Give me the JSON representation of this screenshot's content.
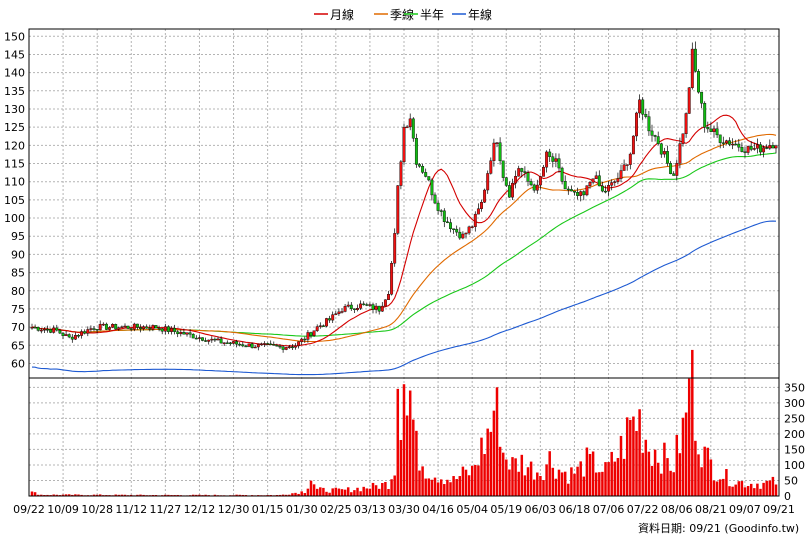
{
  "chart_data": {
    "type": "candlestick",
    "title": "",
    "legend": {
      "placement": "top-center",
      "items": [
        {
          "label": "月線",
          "color": "#d40000"
        },
        {
          "label": "季線",
          "color": "#e06a00"
        },
        {
          "label": "半年",
          "color": "#19c819"
        },
        {
          "label": "年線",
          "color": "#1e5ad2"
        }
      ]
    },
    "price_axis": {
      "ylim": [
        56,
        152
      ],
      "ticks": [
        60,
        65,
        70,
        75,
        80,
        85,
        90,
        95,
        100,
        105,
        110,
        115,
        120,
        125,
        130,
        135,
        140,
        145,
        150
      ]
    },
    "volume_axis": {
      "ylim": [
        0,
        380
      ],
      "ticks": [
        0,
        50,
        100,
        150,
        200,
        250,
        300,
        350
      ]
    },
    "x_ticks": [
      "09/22",
      "10/09",
      "10/28",
      "11/12",
      "11/27",
      "12/12",
      "12/30",
      "01/15",
      "01/30",
      "02/25",
      "03/13",
      "03/30",
      "04/16",
      "05/04",
      "05/19",
      "06/03",
      "06/18",
      "07/06",
      "07/22",
      "08/06",
      "08/21",
      "09/07",
      "09/21"
    ],
    "footer": "資料日期: 09/21 (Goodinfo.tw)",
    "colors": {
      "up": "#ee1111",
      "down": "#11bb11",
      "volume": "#ee0000",
      "grid": "#b4b4b4"
    },
    "close_keypoints": [
      [
        0,
        70
      ],
      [
        8,
        69
      ],
      [
        12,
        67
      ],
      [
        20,
        70
      ],
      [
        30,
        70
      ],
      [
        40,
        70
      ],
      [
        50,
        68
      ],
      [
        60,
        66
      ],
      [
        70,
        65
      ],
      [
        80,
        64.5
      ],
      [
        85,
        65
      ],
      [
        88,
        67
      ],
      [
        92,
        70
      ],
      [
        96,
        72
      ],
      [
        100,
        75
      ],
      [
        106,
        76
      ],
      [
        112,
        75
      ],
      [
        115,
        80
      ],
      [
        117,
        95
      ],
      [
        118,
        108
      ],
      [
        120,
        125
      ],
      [
        122,
        128
      ],
      [
        124,
        116
      ],
      [
        127,
        112
      ],
      [
        130,
        105
      ],
      [
        133,
        100
      ],
      [
        136,
        97
      ],
      [
        139,
        95
      ],
      [
        142,
        98
      ],
      [
        145,
        104
      ],
      [
        148,
        117
      ],
      [
        150,
        122
      ],
      [
        152,
        112
      ],
      [
        154,
        107
      ],
      [
        157,
        114
      ],
      [
        160,
        110
      ],
      [
        163,
        108
      ],
      [
        166,
        117
      ],
      [
        169,
        115
      ],
      [
        172,
        108
      ],
      [
        175,
        106
      ],
      [
        178,
        106
      ],
      [
        181,
        112
      ],
      [
        184,
        107
      ],
      [
        187,
        109
      ],
      [
        190,
        112
      ],
      [
        193,
        118
      ],
      [
        196,
        132
      ],
      [
        199,
        125
      ],
      [
        202,
        121
      ],
      [
        205,
        115
      ],
      [
        207,
        112
      ],
      [
        209,
        120
      ],
      [
        211,
        128
      ],
      [
        213,
        145
      ],
      [
        215,
        135
      ],
      [
        217,
        126
      ],
      [
        219,
        124
      ],
      [
        222,
        122
      ],
      [
        225,
        121
      ],
      [
        228,
        120
      ],
      [
        231,
        119
      ],
      [
        234,
        119
      ],
      [
        237,
        120
      ],
      [
        240,
        121
      ]
    ],
    "volume_keypoints": [
      [
        0,
        12
      ],
      [
        3,
        4
      ],
      [
        10,
        4
      ],
      [
        40,
        3
      ],
      [
        80,
        3
      ],
      [
        88,
        15
      ],
      [
        90,
        60
      ],
      [
        92,
        20
      ],
      [
        100,
        18
      ],
      [
        110,
        30
      ],
      [
        115,
        40
      ],
      [
        117,
        100
      ],
      [
        118,
        345
      ],
      [
        119,
        300
      ],
      [
        120,
        360
      ],
      [
        121,
        260
      ],
      [
        122,
        330
      ],
      [
        124,
        150
      ],
      [
        127,
        90
      ],
      [
        130,
        70
      ],
      [
        133,
        60
      ],
      [
        136,
        50
      ],
      [
        139,
        70
      ],
      [
        142,
        80
      ],
      [
        145,
        150
      ],
      [
        148,
        220
      ],
      [
        150,
        350
      ],
      [
        152,
        140
      ],
      [
        155,
        100
      ],
      [
        158,
        110
      ],
      [
        161,
        90
      ],
      [
        164,
        80
      ],
      [
        167,
        120
      ],
      [
        170,
        85
      ],
      [
        173,
        70
      ],
      [
        176,
        80
      ],
      [
        179,
        110
      ],
      [
        182,
        100
      ],
      [
        185,
        80
      ],
      [
        188,
        120
      ],
      [
        191,
        170
      ],
      [
        193,
        230
      ],
      [
        196,
        250
      ],
      [
        199,
        160
      ],
      [
        202,
        140
      ],
      [
        205,
        110
      ],
      [
        207,
        100
      ],
      [
        209,
        180
      ],
      [
        211,
        240
      ],
      [
        212,
        380
      ],
      [
        213,
        360
      ],
      [
        215,
        200
      ],
      [
        217,
        130
      ],
      [
        220,
        90
      ],
      [
        224,
        60
      ],
      [
        228,
        45
      ],
      [
        232,
        40
      ],
      [
        236,
        40
      ],
      [
        240,
        45
      ]
    ]
  }
}
